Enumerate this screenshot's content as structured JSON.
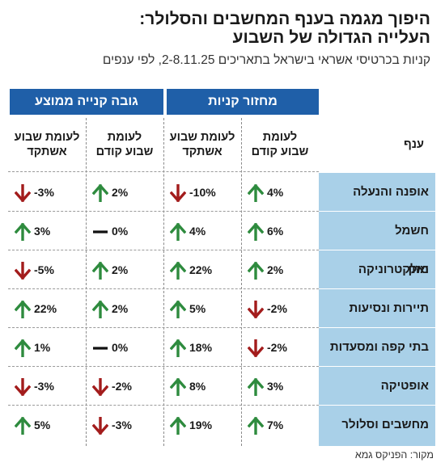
{
  "header": {
    "title_line1": "היפוך מגמה בענף המחשבים והסלולר:",
    "title_line2": "העלייה הגדולה של השבוע",
    "subtitle": "קניות בכרטיסי אשראי בישראל בתאריכים 2-8.11.25, לפי ענפים"
  },
  "groups": {
    "turnover": "מחזור קניות",
    "avg_purchase": "גובה קנייה ממוצע"
  },
  "columns": {
    "sector": "ענף",
    "turnover_prev_week_l1": "לעומת",
    "turnover_prev_week_l2": "שבוע קודם",
    "turnover_quiet_week_l1": "לעומת שבוע",
    "turnover_quiet_week_l2": "אשתקד",
    "avg_prev_week_l1": "לעומת",
    "avg_prev_week_l2": "שבוע קודם",
    "avg_quiet_week_l1": "לעומת שבוע",
    "avg_quiet_week_l2": "אשתקד"
  },
  "rows": [
    {
      "sector": "אופנה והנעלה",
      "c1": "4%",
      "c2": "-10%",
      "c3": "2%",
      "c4": "-3%"
    },
    {
      "sector": "חשמל ואלקטרוניקה",
      "c1": "6%",
      "c2": "4%",
      "c3": "0%",
      "c4": "3%"
    },
    {
      "sector": "מזון",
      "c1": "2%",
      "c2": "22%",
      "c3": "2%",
      "c4": "-5%"
    },
    {
      "sector": "תיירות ונסיעות",
      "c1": "-2%",
      "c2": "5%",
      "c3": "2%",
      "c4": "22%"
    },
    {
      "sector": "בתי קפה ומסעדות",
      "c1": "-2%",
      "c2": "18%",
      "c3": "0%",
      "c4": "1%"
    },
    {
      "sector": "אופטיקה",
      "c1": "3%",
      "c2": "8%",
      "c3": "-2%",
      "c4": "-3%"
    },
    {
      "sector": "מחשבים וסלולר",
      "c1": "7%",
      "c2": "19%",
      "c3": "-3%",
      "c4": "5%"
    }
  ],
  "icons": {
    "up": "arrow-up-icon",
    "down": "arrow-down-icon",
    "flat": "dash-icon"
  },
  "colors": {
    "group_header": "#1f5fa8",
    "sector_column": "#a9d0e8",
    "up": "#2e8b3e",
    "down": "#a31c1c",
    "flat": "#111111"
  },
  "source": "מקור: הפניקס גמא"
}
